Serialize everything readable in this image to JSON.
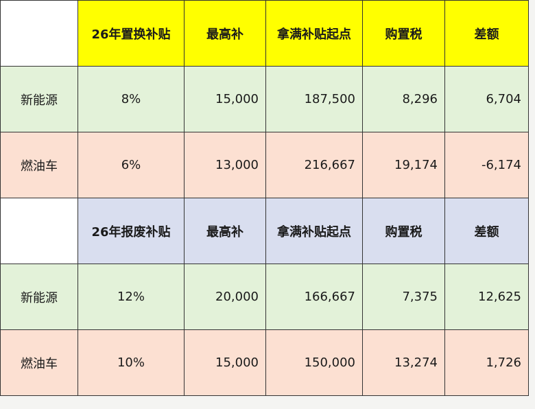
{
  "colors": {
    "header1": "#ffff00",
    "header2": "#d9deef",
    "nev_row": "#e3f2d9",
    "ice_row": "#fce0d2"
  },
  "sections": [
    {
      "headers": [
        "26年置换补贴",
        "最高补",
        "拿满补贴起点",
        "购置税",
        "差额"
      ],
      "rows": [
        {
          "label": "新能源",
          "rate": "8%",
          "max": "15,000",
          "start": "187,500",
          "tax": "8,296",
          "diff": "6,704"
        },
        {
          "label": "燃油车",
          "rate": "6%",
          "max": "13,000",
          "start": "216,667",
          "tax": "19,174",
          "diff": "-6,174"
        }
      ]
    },
    {
      "headers": [
        "26年报废补贴",
        "最高补",
        "拿满补贴起点",
        "购置税",
        "差额"
      ],
      "rows": [
        {
          "label": "新能源",
          "rate": "12%",
          "max": "20,000",
          "start": "166,667",
          "tax": "7,375",
          "diff": "12,625"
        },
        {
          "label": "燃油车",
          "rate": "10%",
          "max": "15,000",
          "start": "150,000",
          "tax": "13,274",
          "diff": "1,726"
        }
      ]
    }
  ]
}
